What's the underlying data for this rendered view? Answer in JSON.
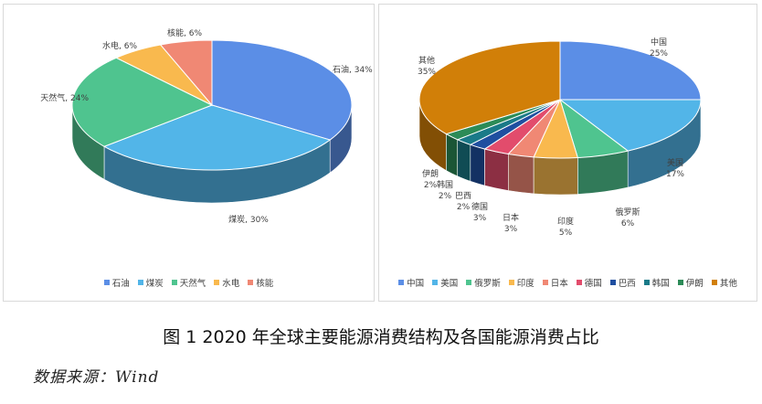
{
  "caption": "图 1 2020 年全球主要能源消费结构及各国能源消费占比",
  "source": "数据来源：Wind",
  "chart_data": [
    {
      "type": "pie",
      "categories": [
        "石油",
        "煤炭",
        "天然气",
        "水电",
        "核能"
      ],
      "values": [
        34,
        30,
        24,
        6,
        6
      ],
      "labels": [
        "石油, 34%",
        "煤炭, 30%",
        "天然气, 24%",
        "水电, 6%",
        "核能, 6%"
      ],
      "colors": [
        "#5b8ee6",
        "#52b5e8",
        "#4fc48f",
        "#f9b94e",
        "#f08874"
      ],
      "legend": "bottom"
    },
    {
      "type": "pie",
      "categories": [
        "中国",
        "美国",
        "俄罗斯",
        "印度",
        "日本",
        "德国",
        "巴西",
        "韩国",
        "伊朗",
        "其他"
      ],
      "values": [
        25,
        17,
        6,
        5,
        3,
        3,
        2,
        2,
        2,
        35
      ],
      "labels": [
        "25%",
        "17%",
        "6%",
        "5%",
        "3%",
        "3%",
        "2%",
        "2%",
        "2%",
        "35%"
      ],
      "colors": [
        "#5b8ee6",
        "#52b5e8",
        "#4fc48f",
        "#f9b94e",
        "#f08874",
        "#e24c6c",
        "#1f4fa0",
        "#1a7a88",
        "#2c8b57",
        "#d17f08"
      ],
      "legend": "bottom"
    }
  ]
}
